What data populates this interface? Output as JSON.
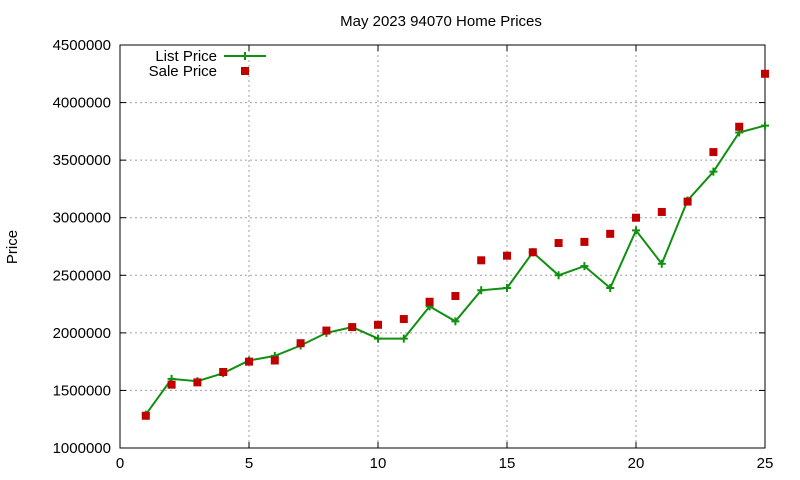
{
  "chart_data": {
    "type": "line",
    "title": "May 2023 94070 Home Prices",
    "xlabel": "",
    "ylabel": "Price",
    "xlim": [
      0,
      25
    ],
    "ylim": [
      1000000,
      4500000
    ],
    "xticks": [
      "0",
      "5",
      "10",
      "15",
      "20",
      "25"
    ],
    "yticks": [
      "1000000",
      "1500000",
      "2000000",
      "2500000",
      "3000000",
      "3500000",
      "4000000",
      "4500000"
    ],
    "grid": true,
    "legend_position": "top-left",
    "series": [
      {
        "name": "List Price",
        "style": "line-with-plus-markers",
        "color": "#109010",
        "x": [
          1,
          2,
          3,
          4,
          5,
          6,
          7,
          8,
          9,
          10,
          11,
          12,
          13,
          14,
          15,
          16,
          17,
          18,
          19,
          20,
          21,
          22,
          23,
          24,
          25
        ],
        "values": [
          1290000,
          1600000,
          1580000,
          1650000,
          1760000,
          1800000,
          1890000,
          2000000,
          2050000,
          1950000,
          1950000,
          2230000,
          2100000,
          2370000,
          2390000,
          2700000,
          2500000,
          2580000,
          2390000,
          2890000,
          2600000,
          3150000,
          3400000,
          3740000,
          3800000
        ]
      },
      {
        "name": "Sale Price",
        "style": "square-markers",
        "color": "#c00000",
        "x": [
          1,
          2,
          3,
          4,
          5,
          6,
          7,
          8,
          9,
          10,
          11,
          12,
          13,
          14,
          15,
          16,
          17,
          18,
          19,
          20,
          21,
          22,
          23,
          24,
          25
        ],
        "values": [
          1280000,
          1550000,
          1570000,
          1660000,
          1750000,
          1760000,
          1910000,
          2020000,
          2050000,
          2070000,
          2120000,
          2270000,
          2320000,
          2630000,
          2670000,
          2700000,
          2780000,
          2790000,
          2860000,
          3000000,
          3050000,
          3140000,
          3570000,
          3790000,
          4250000
        ]
      }
    ]
  }
}
